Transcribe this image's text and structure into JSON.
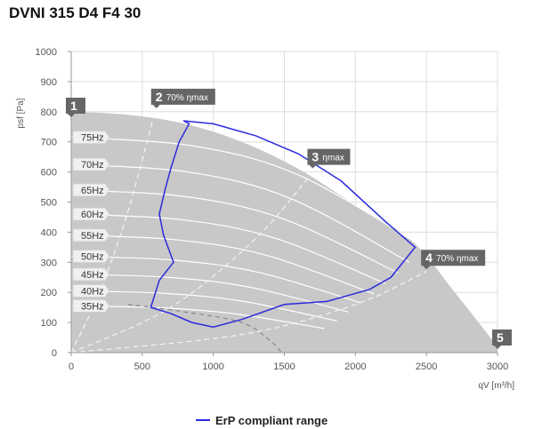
{
  "title": "DVNI 315 D4 F4 30",
  "chart_data": {
    "type": "line",
    "xlabel": "qV [m³/h]",
    "ylabel": "psf [Pa]",
    "xlim": [
      0,
      3000
    ],
    "ylim": [
      0,
      1000
    ],
    "xticks": [
      0,
      500,
      1000,
      1500,
      2000,
      2500,
      3000
    ],
    "yticks": [
      0,
      100,
      200,
      300,
      400,
      500,
      600,
      700,
      800,
      900,
      1000
    ],
    "grid": true,
    "legend_position": "bottom",
    "colors": {
      "area": "#c8c8c8",
      "curves": "#ffffff",
      "erp": "#2b2bdd",
      "marker": "#666666",
      "grid": "#dddddd"
    },
    "max_curve": [
      [
        0,
        800
      ],
      [
        400,
        790
      ],
      [
        800,
        760
      ],
      [
        1200,
        700
      ],
      [
        1600,
        610
      ],
      [
        2000,
        490
      ],
      [
        2400,
        370
      ],
      [
        2700,
        200
      ],
      [
        3000,
        20
      ]
    ],
    "speed_curves": [
      {
        "label": "75Hz",
        "end": [
          2480,
          350
        ],
        "y0": 715
      },
      {
        "label": "70Hz",
        "end": [
          2380,
          300
        ],
        "y0": 625
      },
      {
        "label": "65Hz",
        "end": [
          2300,
          265
        ],
        "y0": 540
      },
      {
        "label": "60Hz",
        "end": [
          2210,
          230
        ],
        "y0": 460
      },
      {
        "label": "55Hz",
        "end": [
          2130,
          195
        ],
        "y0": 390
      },
      {
        "label": "50Hz",
        "end": [
          2040,
          165
        ],
        "y0": 320
      },
      {
        "label": "45Hz",
        "end": [
          1950,
          135
        ],
        "y0": 260
      },
      {
        "label": "40Hz",
        "end": [
          1870,
          105
        ],
        "y0": 205
      },
      {
        "label": "35Hz",
        "end": [
          1780,
          80
        ],
        "y0": 155
      }
    ],
    "eta_lines": [
      {
        "label": "2 70% ηmax",
        "points": [
          [
            0,
            0
          ],
          [
            200,
            200
          ],
          [
            400,
            470
          ],
          [
            600,
            820
          ]
        ]
      },
      {
        "label": "3 ηmax",
        "points": [
          [
            0,
            0
          ],
          [
            700,
            150
          ],
          [
            1300,
            380
          ],
          [
            1700,
            600
          ]
        ]
      },
      {
        "label": "4 70% ηmax",
        "points": [
          [
            0,
            0
          ],
          [
            1200,
            60
          ],
          [
            2000,
            160
          ],
          [
            2500,
            270
          ]
        ]
      }
    ],
    "operating_limit": [
      [
        400,
        160
      ],
      [
        800,
        135
      ],
      [
        1200,
        100
      ],
      [
        1400,
        40
      ],
      [
        1480,
        0
      ]
    ],
    "erp_range": [
      [
        790,
        770
      ],
      [
        830,
        760
      ],
      [
        760,
        700
      ],
      [
        700,
        610
      ],
      [
        660,
        540
      ],
      [
        620,
        460
      ],
      [
        650,
        390
      ],
      [
        720,
        300
      ],
      [
        620,
        240
      ],
      [
        560,
        150
      ],
      [
        700,
        130
      ],
      [
        850,
        100
      ],
      [
        1000,
        85
      ],
      [
        1200,
        110
      ],
      [
        1500,
        160
      ],
      [
        1800,
        170
      ],
      [
        2100,
        210
      ],
      [
        2250,
        250
      ],
      [
        2420,
        350
      ],
      [
        2200,
        440
      ],
      [
        1900,
        570
      ],
      [
        1600,
        660
      ],
      [
        1300,
        720
      ],
      [
        1000,
        760
      ],
      [
        790,
        770
      ]
    ],
    "markers": [
      {
        "num": "1",
        "text": "",
        "q": 0,
        "p": 820
      },
      {
        "num": "2",
        "text": "70% ηmax",
        "q": 600,
        "p": 850
      },
      {
        "num": "3",
        "text": "ηmax",
        "q": 1700,
        "p": 650
      },
      {
        "num": "4",
        "text": "70% ηmax",
        "q": 2500,
        "p": 315
      },
      {
        "num": "5",
        "text": "",
        "q": 3000,
        "p": 50
      }
    ],
    "legend": [
      {
        "name": "ErP compliant range",
        "color": "#2b2bdd"
      }
    ]
  }
}
